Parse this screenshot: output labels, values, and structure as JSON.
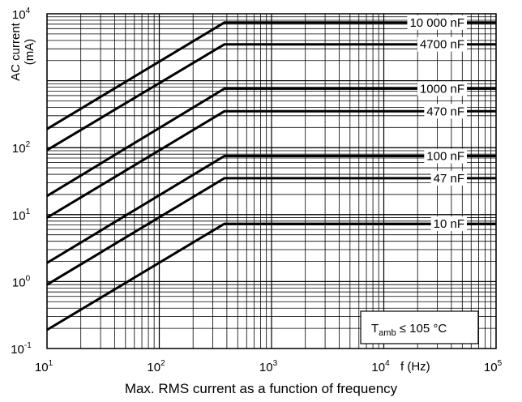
{
  "caption": "Max. RMS current as a function of frequency",
  "chart_data": {
    "type": "line",
    "xscale": "log",
    "yscale": "log",
    "xlim": [
      10,
      100000
    ],
    "ylim": [
      0.1,
      10000
    ],
    "grid": true,
    "xlabel": "f (Hz)",
    "ylabel_line1": "AC current",
    "ylabel_line2": "(mA)",
    "x_ticks": [
      {
        "base": "10",
        "exp": "1",
        "value": 10
      },
      {
        "base": "10",
        "exp": "2",
        "value": 100
      },
      {
        "base": "10",
        "exp": "3",
        "value": 1000
      },
      {
        "base": "10",
        "exp": "4",
        "value": 10000
      },
      {
        "base": "10",
        "exp": "5",
        "value": 100000
      }
    ],
    "y_ticks": [
      {
        "base": "10",
        "exp": "-1",
        "value": 0.1
      },
      {
        "base": "10",
        "exp": "0",
        "value": 1
      },
      {
        "base": "10",
        "exp": "1",
        "value": 10
      },
      {
        "base": "10",
        "exp": "2",
        "value": 100
      },
      {
        "base": "10",
        "exp": "4",
        "value": 10000
      }
    ],
    "annotation": {
      "main": "T",
      "sub": "amb",
      "rest": " ≤ 105 °C"
    },
    "series": [
      {
        "name": "10 000 nF",
        "x": [
          10,
          380,
          100000
        ],
        "y": [
          190,
          7400,
          7400
        ]
      },
      {
        "name": "4700 nF",
        "x": [
          10,
          380,
          100000
        ],
        "y": [
          92,
          3500,
          3500
        ]
      },
      {
        "name": "1000 nF",
        "x": [
          10,
          380,
          100000
        ],
        "y": [
          19,
          760,
          760
        ]
      },
      {
        "name": "470 nF",
        "x": [
          10,
          380,
          100000
        ],
        "y": [
          9,
          350,
          350
        ]
      },
      {
        "name": "100 nF",
        "x": [
          10,
          380,
          100000
        ],
        "y": [
          1.9,
          75,
          75
        ]
      },
      {
        "name": "47 nF",
        "x": [
          10,
          380,
          100000
        ],
        "y": [
          0.9,
          35,
          35
        ]
      },
      {
        "name": "10 nF",
        "x": [
          10,
          380,
          100000
        ],
        "y": [
          0.19,
          7.3,
          7.3
        ]
      }
    ]
  }
}
